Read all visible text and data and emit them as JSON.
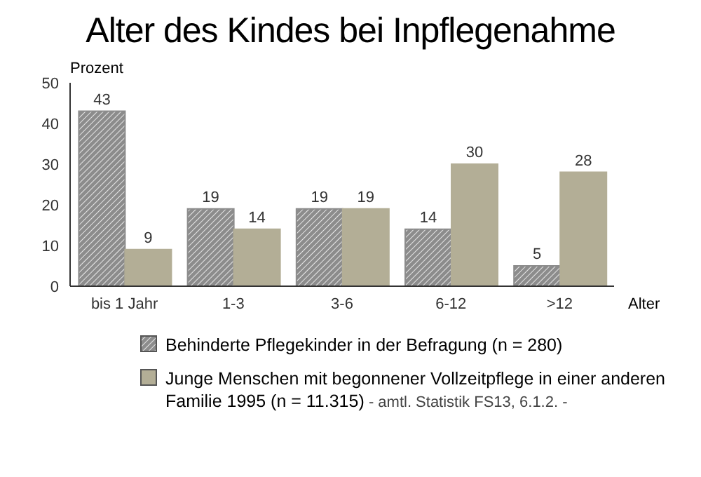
{
  "chart_data": {
    "type": "bar",
    "title": "Alter des Kindes bei Inpflegenahme",
    "ylabel": "Prozent",
    "xlabel": "Alter",
    "categories": [
      "bis 1 Jahr",
      "1-3",
      "3-6",
      "6-12",
      ">12"
    ],
    "series": [
      {
        "name": "Behinderte Pflegekinder in der Befragung (n = 280)",
        "color": "#8c8c8c",
        "values": [
          43,
          19,
          19,
          14,
          5
        ]
      },
      {
        "name": "Junge Menschen mit begonnener Vollzeitpflege in einer anderen Familie 1995 (n = 11.315)",
        "color": "#b3ae96",
        "values": [
          9,
          14,
          19,
          30,
          28
        ]
      }
    ],
    "ylim": [
      0,
      50
    ],
    "yticks": [
      0,
      10,
      20,
      30,
      40,
      50
    ],
    "grid": false,
    "legend": "bottom",
    "data_labels": true,
    "annotations": [
      "- amtl. Statistik FS13, 6.1.2. -"
    ]
  }
}
